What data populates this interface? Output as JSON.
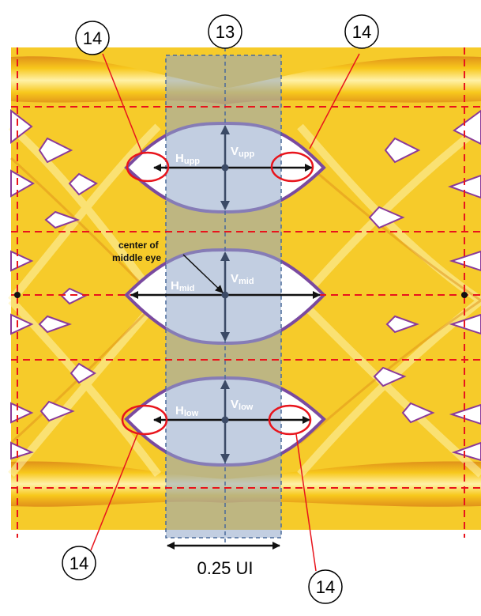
{
  "callouts": {
    "window_ref": "13",
    "left_top_ref": "14",
    "right_top_ref": "14",
    "left_bottom_ref": "14",
    "right_bottom_ref": "14"
  },
  "eye_labels": {
    "h_upp": {
      "main": "H",
      "sub": "upp"
    },
    "v_upp": {
      "main": "V",
      "sub": "upp"
    },
    "h_mid": {
      "main": "H",
      "sub": "mid"
    },
    "v_mid": {
      "main": "V",
      "sub": "mid"
    },
    "h_low": {
      "main": "H",
      "sub": "low"
    },
    "v_low": {
      "main": "V",
      "sub": "low"
    }
  },
  "center_note": {
    "line1": "center of",
    "line2": "middle eye"
  },
  "window_width_label": "0.25 UI",
  "colors": {
    "trace_yellow": "#f7c81c",
    "trace_orange": "#e89a12",
    "trace_red": "#c0202a",
    "eye_edge": "#7a4aa0",
    "eye_fill": "#ffffff",
    "window_fill": "#8fa6c8",
    "window_border": "#4a6a9a",
    "dashed_red": "#e8141c",
    "arrow": "#111111",
    "vert_arrow": "#3b4a66",
    "callout_circle": "#e8141c"
  }
}
